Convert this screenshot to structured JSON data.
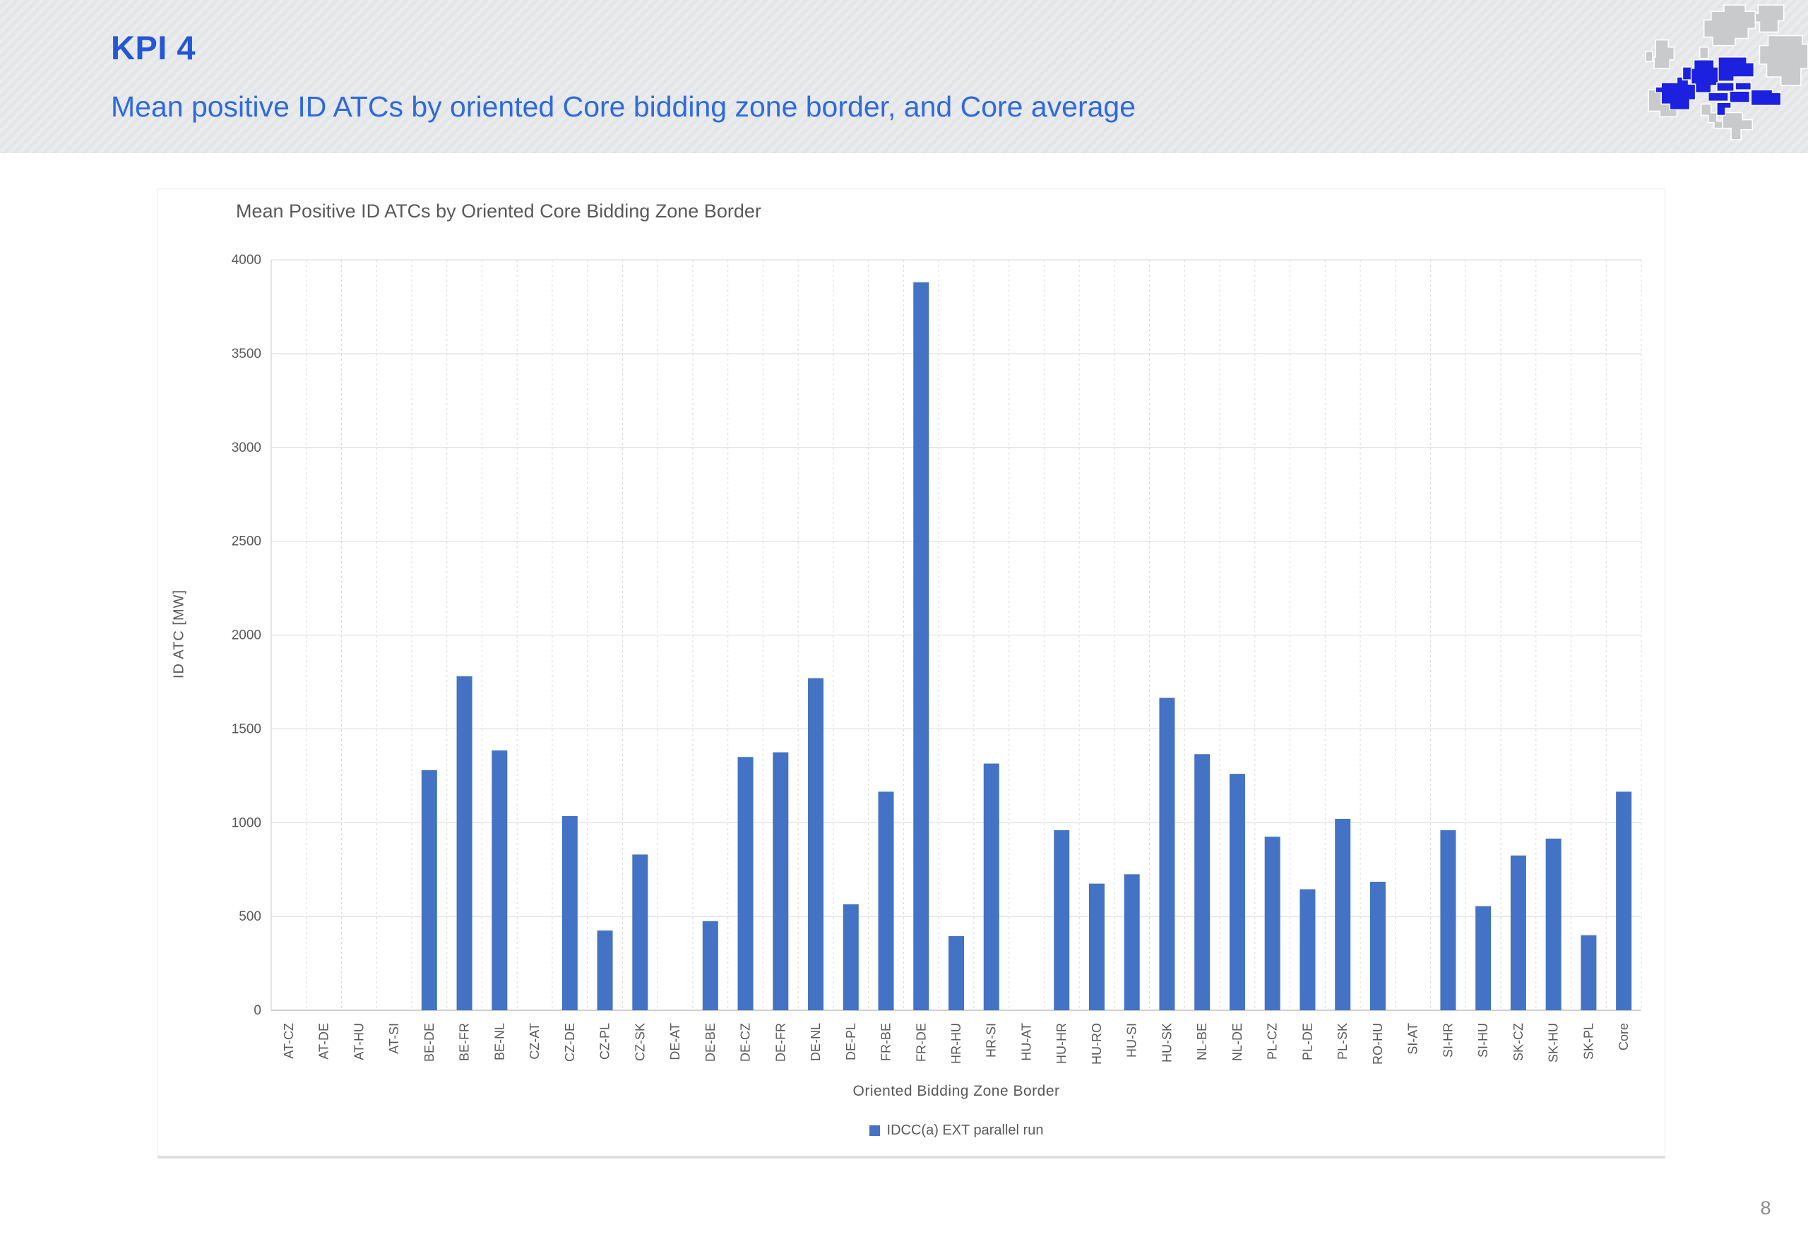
{
  "header": {
    "title": "KPI 4",
    "subtitle": "Mean positive ID ATCs by oriented Core bidding zone border, and Core average"
  },
  "footer": {
    "page_number": "8"
  },
  "colors": {
    "title_blue": "#2456d5",
    "subtitle_blue": "#2e6ade",
    "bar_blue": "#4472c4",
    "map_blue": "#1c21df",
    "map_gray": "#c9cacc",
    "axis_text": "#595959",
    "gridline": "#d9d9d9"
  },
  "chart_data": {
    "type": "bar",
    "title": "Mean Positive ID ATCs by Oriented Core Bidding Zone Border",
    "xlabel": "Oriented Bidding Zone Border",
    "ylabel": "ID ATC [MW]",
    "ylim": [
      0,
      4000
    ],
    "ytick_step": 500,
    "grid": true,
    "legend_position": "bottom",
    "series": [
      {
        "name": "IDCC(a) EXT parallel run",
        "color": "#4472c4"
      }
    ],
    "categories": [
      "AT-CZ",
      "AT-DE",
      "AT-HU",
      "AT-SI",
      "BE-DE",
      "BE-FR",
      "BE-NL",
      "CZ-AT",
      "CZ-DE",
      "CZ-PL",
      "CZ-SK",
      "DE-AT",
      "DE-BE",
      "DE-CZ",
      "DE-FR",
      "DE-NL",
      "DE-PL",
      "FR-BE",
      "FR-DE",
      "HR-HU",
      "HR-SI",
      "HU-AT",
      "HU-HR",
      "HU-RO",
      "HU-SI",
      "HU-SK",
      "NL-BE",
      "NL-DE",
      "PL-CZ",
      "PL-DE",
      "PL-SK",
      "RO-HU",
      "SI-AT",
      "SI-HR",
      "SI-HU",
      "SK-CZ",
      "SK-HU",
      "SK-PL",
      "Core"
    ],
    "values": [
      0,
      0,
      0,
      0,
      1280,
      1780,
      1385,
      0,
      1035,
      425,
      830,
      0,
      475,
      1350,
      1375,
      1770,
      565,
      1165,
      3880,
      395,
      1315,
      0,
      960,
      675,
      725,
      1665,
      1365,
      1260,
      925,
      645,
      1020,
      685,
      0,
      960,
      555,
      825,
      915,
      400,
      1165
    ]
  }
}
